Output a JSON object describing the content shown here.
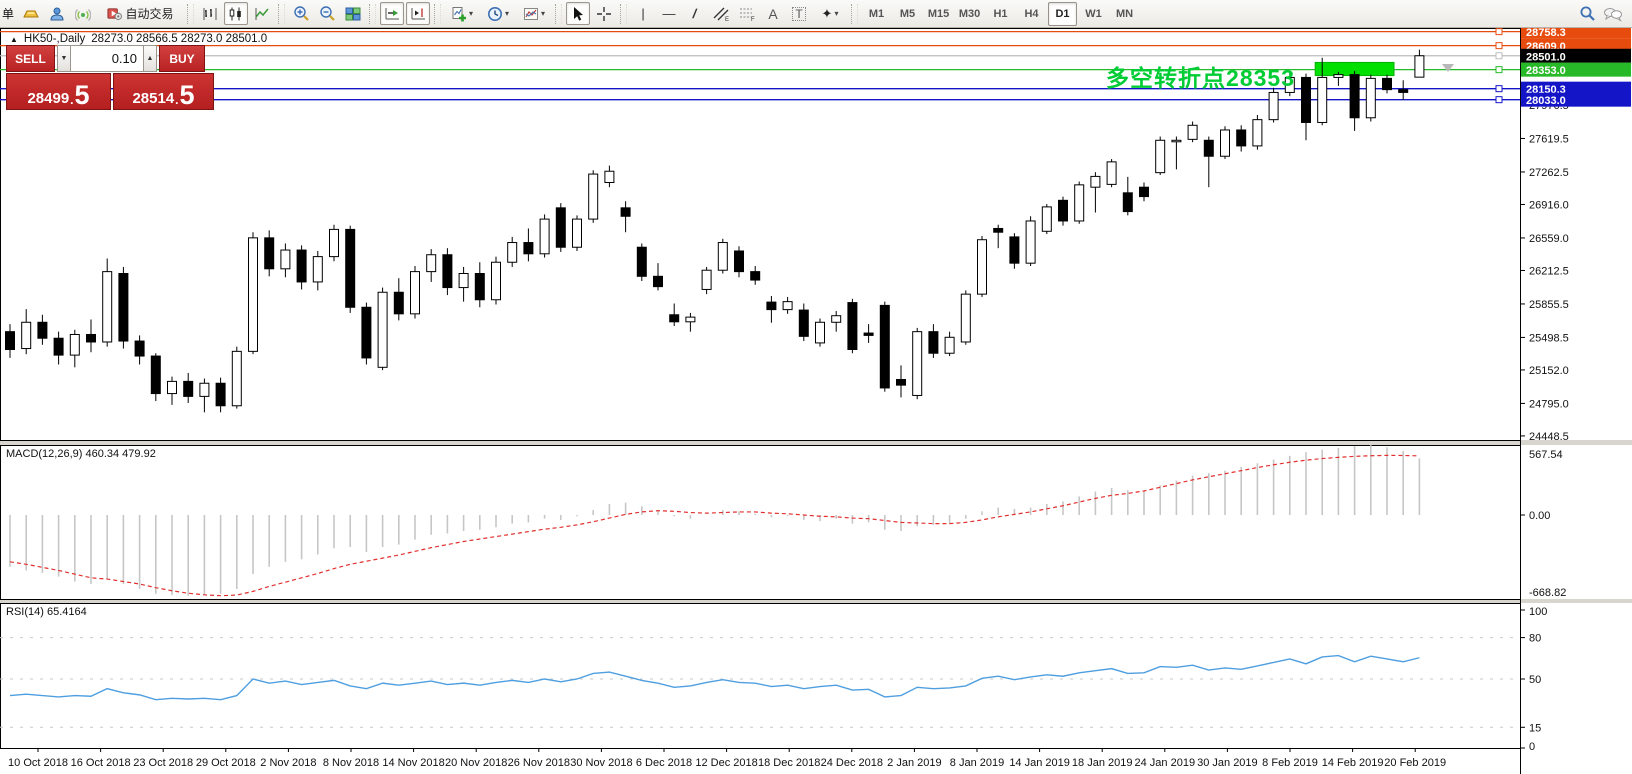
{
  "toolbar": {
    "menu_partial": "单",
    "autotrade_label": "自动交易",
    "timeframes": [
      "M1",
      "M5",
      "M15",
      "M30",
      "H1",
      "H4",
      "D1",
      "W1",
      "MN"
    ],
    "active_timeframe": "D1",
    "tool_glyphs": {
      "vline": "|",
      "hline": "—",
      "trend": "/",
      "channel": "〃",
      "fibo": "F",
      "text": "A",
      "textlabel": "T",
      "arrows": "✦"
    }
  },
  "window_title": {
    "symbol_period": "HK50-,Daily",
    "ohlc": "28273.0 28566.5 28273.0 28501.0",
    "collapse_icon": "▲"
  },
  "trade_panel": {
    "sell_label": "SELL",
    "buy_label": "BUY",
    "volume": "0.10",
    "sell_price_int": "28499",
    "sell_price_dec": "5",
    "buy_price_int": "28514",
    "buy_price_dec": "5",
    "step_down_glyph": "▼",
    "step_up_glyph": "▲"
  },
  "annotation": {
    "text": "多空转折点28353",
    "color": "#00cc33"
  },
  "colors": {
    "orange_line": "#e84b0e",
    "green_line": "#27b927",
    "blue_line": "#1515c8",
    "silver_line": "#bdbdbd",
    "green_box": "#00e000",
    "macd_bar": "#c6c6c6",
    "macd_signal": "#e23030",
    "rsi_line": "#4f9fe0",
    "badge_text": "#ffffff",
    "current_badge_bg": "#000000",
    "panel_red": "#c62f2f"
  },
  "price_axis_ticks": [
    "27976.5",
    "27619.5",
    "27262.5",
    "26916.0",
    "26559.0",
    "26212.5",
    "25855.5",
    "25498.5",
    "25152.0",
    "24795.0",
    "24448.5"
  ],
  "hlines": [
    {
      "price": 28758.3,
      "label": "28758.3",
      "color": "#e84b0e"
    },
    {
      "price": 28609.0,
      "label": "28609.0",
      "color": "#e84b0e"
    },
    {
      "price": 28501.0,
      "label": "28501.0",
      "color": "#bdbdbd",
      "badge": "#000000"
    },
    {
      "price": 28353.0,
      "label": "28353.0",
      "color": "#27b927"
    },
    {
      "price": 28150.3,
      "label": "28150.3",
      "color": "#1515c8"
    },
    {
      "price": 28033.0,
      "label": "28033.0",
      "color": "#1515c8"
    }
  ],
  "green_box": {
    "price_top": 28430,
    "price_bottom": 28290,
    "from_candle": 81,
    "to_candle": 85
  },
  "macd_panel": {
    "label": "MACD(12,26,9) 460.34 479.92",
    "ticks": [
      "567.54",
      "0.00",
      "-668.82"
    ]
  },
  "rsi_panel": {
    "label": "RSI(14) 65.4164",
    "ticks": [
      "100",
      "80",
      "50",
      "15",
      "0"
    ],
    "level_lines": [
      80,
      50,
      15
    ]
  },
  "time_axis": [
    "10 Oct 2018",
    "16 Oct 2018",
    "23 Oct 2018",
    "29 Oct 2018",
    "2 Nov 2018",
    "8 Nov 2018",
    "14 Nov 2018",
    "20 Nov 2018",
    "26 Nov 2018",
    "30 Nov 2018",
    "6 Dec 2018",
    "12 Dec 2018",
    "18 Dec 2018",
    "24 Dec 2018",
    "2 Jan 2019",
    "8 Jan 2019",
    "14 Jan 2019",
    "18 Jan 2019",
    "24 Jan 2019",
    "30 Jan 2019",
    "8 Feb 2019",
    "14 Feb 2019",
    "20 Feb 2019"
  ],
  "chart_data": {
    "type": "candlestick",
    "symbol": "HK50-",
    "period": "Daily",
    "title": "HK50-,Daily",
    "last_ohlc": {
      "open": 28273.0,
      "high": 28566.5,
      "low": 28273.0,
      "close": 28501.0
    },
    "y_range": [
      24406,
      28797
    ],
    "candles": [
      [
        25560,
        25640,
        25280,
        25370
      ],
      [
        25380,
        25800,
        25320,
        25660
      ],
      [
        25660,
        25740,
        25420,
        25490
      ],
      [
        25490,
        25560,
        25210,
        25310
      ],
      [
        25310,
        25580,
        25180,
        25530
      ],
      [
        25530,
        25690,
        25340,
        25450
      ],
      [
        25450,
        26340,
        25400,
        26200
      ],
      [
        26180,
        26250,
        25380,
        25460
      ],
      [
        25460,
        25520,
        25210,
        25300
      ],
      [
        25300,
        25330,
        24820,
        24900
      ],
      [
        24900,
        25080,
        24780,
        25030
      ],
      [
        25030,
        25120,
        24800,
        24870
      ],
      [
        24870,
        25060,
        24700,
        25010
      ],
      [
        25010,
        25070,
        24700,
        24770
      ],
      [
        24770,
        25400,
        24740,
        25350
      ],
      [
        25350,
        26620,
        25320,
        26560
      ],
      [
        26560,
        26640,
        26150,
        26230
      ],
      [
        26230,
        26500,
        26140,
        26430
      ],
      [
        26430,
        26480,
        26010,
        26090
      ],
      [
        26090,
        26420,
        26000,
        26360
      ],
      [
        26360,
        26700,
        26310,
        26650
      ],
      [
        26650,
        26690,
        25760,
        25820
      ],
      [
        25820,
        25870,
        25210,
        25280
      ],
      [
        25180,
        26030,
        25150,
        25980
      ],
      [
        25980,
        26130,
        25680,
        25750
      ],
      [
        25750,
        26260,
        25700,
        26200
      ],
      [
        26200,
        26440,
        26090,
        26380
      ],
      [
        26380,
        26450,
        25950,
        26030
      ],
      [
        26030,
        26250,
        25880,
        26180
      ],
      [
        26180,
        26300,
        25820,
        25900
      ],
      [
        25900,
        26360,
        25850,
        26300
      ],
      [
        26300,
        26570,
        26250,
        26510
      ],
      [
        26510,
        26660,
        26310,
        26390
      ],
      [
        26390,
        26810,
        26350,
        26760
      ],
      [
        26880,
        26930,
        26410,
        26460
      ],
      [
        26460,
        26800,
        26420,
        26760
      ],
      [
        26760,
        27280,
        26720,
        27240
      ],
      [
        27150,
        27330,
        27100,
        27270
      ],
      [
        26880,
        26950,
        26620,
        26790
      ],
      [
        26460,
        26500,
        26100,
        26150
      ],
      [
        26150,
        26290,
        26000,
        26040
      ],
      [
        25740,
        25860,
        25620,
        25665
      ],
      [
        25665,
        25760,
        25560,
        25715
      ],
      [
        26010,
        26250,
        25960,
        26215
      ],
      [
        26215,
        26550,
        26180,
        26510
      ],
      [
        26420,
        26470,
        26140,
        26200
      ],
      [
        26200,
        26260,
        26060,
        26110
      ],
      [
        25875,
        25940,
        25655,
        25795
      ],
      [
        25795,
        25930,
        25750,
        25880
      ],
      [
        25790,
        25860,
        25460,
        25510
      ],
      [
        25440,
        25700,
        25400,
        25660
      ],
      [
        25660,
        25780,
        25560,
        25730
      ],
      [
        25870,
        25910,
        25330,
        25370
      ],
      [
        25545,
        25640,
        25440,
        25520
      ],
      [
        25840,
        25880,
        24920,
        24960
      ],
      [
        25050,
        25200,
        24860,
        24990
      ],
      [
        24880,
        25600,
        24840,
        25560
      ],
      [
        25560,
        25640,
        25280,
        25330
      ],
      [
        25330,
        25560,
        25300,
        25500
      ],
      [
        25450,
        26000,
        25420,
        25960
      ],
      [
        25960,
        26580,
        25930,
        26540
      ],
      [
        26660,
        26700,
        26450,
        26620
      ],
      [
        26570,
        26610,
        26230,
        26290
      ],
      [
        26290,
        26790,
        26260,
        26740
      ],
      [
        26630,
        26920,
        26600,
        26890
      ],
      [
        26960,
        27000,
        26690,
        26740
      ],
      [
        26740,
        27160,
        26710,
        27125
      ],
      [
        27100,
        27260,
        26830,
        27215
      ],
      [
        27130,
        27400,
        27100,
        27370
      ],
      [
        27040,
        27210,
        26800,
        26840
      ],
      [
        27100,
        27150,
        26950,
        27000
      ],
      [
        27255,
        27640,
        27230,
        27600
      ],
      [
        27590,
        27640,
        27290,
        27600
      ],
      [
        27610,
        27800,
        27580,
        27760
      ],
      [
        27600,
        27640,
        27100,
        27430
      ],
      [
        27430,
        27750,
        27400,
        27710
      ],
      [
        27710,
        27760,
        27480,
        27540
      ],
      [
        27540,
        27870,
        27500,
        27820
      ],
      [
        27820,
        28160,
        27790,
        28110
      ],
      [
        28110,
        28320,
        28070,
        28270
      ],
      [
        28270,
        28310,
        27600,
        27790
      ],
      [
        27790,
        28480,
        27760,
        28270
      ],
      [
        28270,
        28330,
        28180,
        28300
      ],
      [
        28300,
        28340,
        27700,
        27840
      ],
      [
        27840,
        28300,
        27800,
        28260
      ],
      [
        28260,
        28300,
        28100,
        28140
      ],
      [
        28140,
        28240,
        28030,
        28110
      ],
      [
        28273,
        28566.5,
        28273,
        28501
      ]
    ],
    "macd": {
      "value": 460.34,
      "signal_value": 479.92,
      "range": [
        -668.82,
        567.54
      ],
      "histogram": [
        -420,
        -450,
        -470,
        -500,
        -540,
        -560,
        -520,
        -560,
        -600,
        -640,
        -650,
        -655,
        -650,
        -640,
        -600,
        -480,
        -420,
        -380,
        -360,
        -320,
        -270,
        -260,
        -300,
        -260,
        -240,
        -200,
        -160,
        -150,
        -130,
        -120,
        -100,
        -70,
        -60,
        -30,
        -40,
        -10,
        40,
        90,
        100,
        70,
        30,
        -10,
        -30,
        0,
        40,
        30,
        10,
        -20,
        -10,
        -40,
        -50,
        -30,
        -70,
        -60,
        -120,
        -130,
        -90,
        -80,
        -70,
        -30,
        30,
        60,
        50,
        60,
        90,
        110,
        150,
        190,
        220,
        200,
        190,
        240,
        280,
        320,
        340,
        360,
        390,
        420,
        450,
        480,
        510,
        530,
        545,
        560,
        567,
        550,
        520,
        460
      ],
      "signal": [
        -380,
        -400,
        -425,
        -450,
        -480,
        -510,
        -520,
        -540,
        -560,
        -590,
        -615,
        -635,
        -648,
        -655,
        -650,
        -620,
        -580,
        -545,
        -510,
        -475,
        -435,
        -400,
        -375,
        -350,
        -325,
        -295,
        -265,
        -240,
        -215,
        -195,
        -175,
        -155,
        -135,
        -115,
        -100,
        -80,
        -55,
        -25,
        5,
        25,
        35,
        30,
        20,
        15,
        20,
        25,
        25,
        15,
        10,
        0,
        -10,
        -15,
        -25,
        -30,
        -45,
        -60,
        -65,
        -70,
        -70,
        -60,
        -40,
        -15,
        5,
        25,
        50,
        75,
        105,
        135,
        160,
        175,
        195,
        225,
        255,
        285,
        310,
        335,
        360,
        385,
        408,
        428,
        445,
        458,
        468,
        476,
        481,
        484,
        483,
        480
      ]
    },
    "rsi": {
      "value": 65.4164,
      "values": [
        38,
        39,
        38,
        37,
        38,
        37.5,
        43,
        40,
        38.5,
        35,
        36,
        35.5,
        36,
        35,
        38,
        50,
        47,
        48.5,
        46,
        47.5,
        49,
        45,
        43,
        47,
        45.5,
        47,
        48.5,
        46,
        47,
        45.5,
        47.5,
        49,
        47.5,
        50,
        48,
        50,
        54,
        55,
        52,
        49,
        47,
        44,
        45,
        47.5,
        49.5,
        47.5,
        47,
        44.5,
        45.5,
        43,
        44.5,
        45.5,
        42,
        42.5,
        37,
        38,
        44,
        43,
        43.5,
        45,
        50.5,
        52,
        49.5,
        51.5,
        53,
        52,
        54.5,
        56,
        57.5,
        54,
        54.5,
        59,
        58.5,
        60,
        56.5,
        58,
        57,
        59.5,
        62,
        64.5,
        61,
        66,
        67,
        62.5,
        66.5,
        64.5,
        62.5,
        65.4
      ]
    }
  }
}
